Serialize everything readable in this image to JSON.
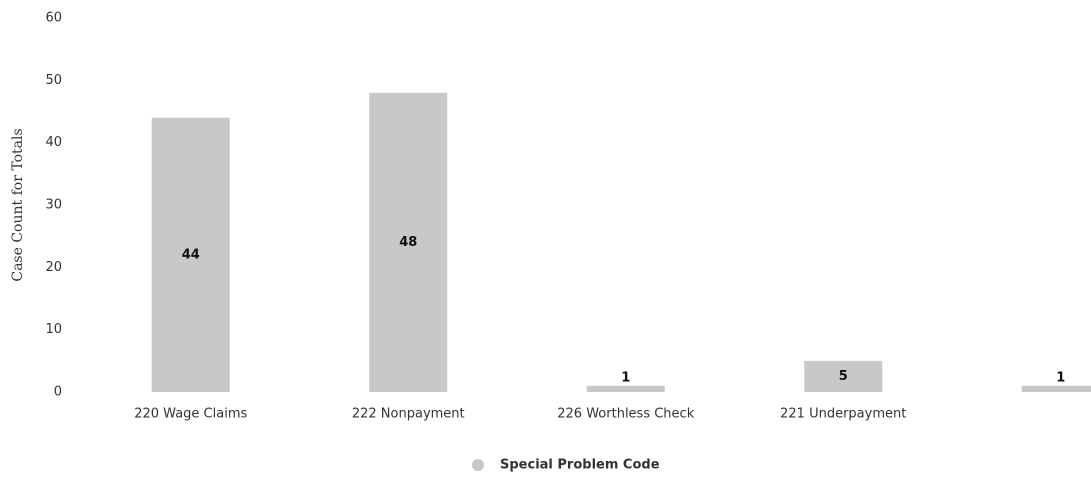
{
  "chart_data": {
    "type": "bar",
    "y_label": "Case Count for Totals",
    "categories": [
      "220 Wage Claims",
      "222 Nonpayment",
      "226 Worthless Check",
      "221 Underpayment",
      null
    ],
    "values": [
      44,
      48,
      1,
      5,
      1
    ],
    "color": "#c8c8c8",
    "ylim": [
      0,
      60
    ],
    "yticks": [
      0,
      10,
      20,
      30,
      40,
      50,
      60
    ],
    "grid": false,
    "legend": {
      "position": "bottom",
      "labels": [
        "Special Problem Code"
      ]
    }
  }
}
